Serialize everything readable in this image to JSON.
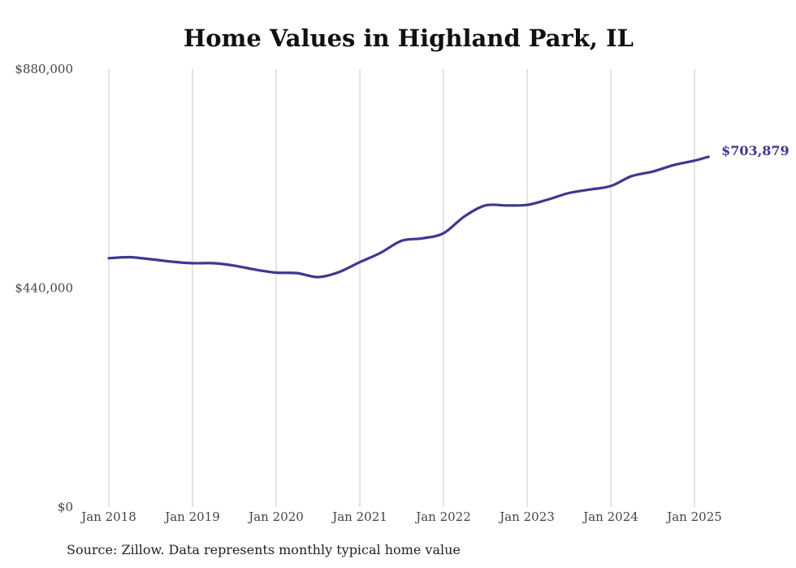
{
  "title": "Home Values in Highland Park, IL",
  "source": "Source: Zillow. Data represents monthly typical home value",
  "colors": {
    "line": "#3d3890",
    "grid": "#c8c8c8",
    "text": "#444444"
  },
  "chart_data": {
    "type": "line",
    "title": "Home Values in Highland Park, IL",
    "xlabel": "",
    "ylabel": "",
    "ylim": [
      0,
      880000
    ],
    "yticks": [
      "$0",
      "$440,000",
      "$880,000"
    ],
    "ytick_values": [
      0,
      440000,
      880000
    ],
    "xticks": [
      "Jan 2018",
      "Jan 2019",
      "Jan 2020",
      "Jan 2021",
      "Jan 2022",
      "Jan 2023",
      "Jan 2024",
      "Jan 2025"
    ],
    "xtick_values": [
      "2018-01",
      "2019-01",
      "2020-01",
      "2021-01",
      "2022-01",
      "2023-01",
      "2024-01",
      "2025-01"
    ],
    "x_range": [
      "2018-01",
      "2025-03"
    ],
    "grid": "vertical",
    "end_label": "$703,879",
    "series": [
      {
        "points": [
          [
            "2018-01",
            500000
          ],
          [
            "2018-04",
            502000
          ],
          [
            "2018-07",
            498000
          ],
          [
            "2018-10",
            493000
          ],
          [
            "2019-01",
            490000
          ],
          [
            "2019-04",
            490000
          ],
          [
            "2019-07",
            485000
          ],
          [
            "2019-10",
            477000
          ],
          [
            "2020-01",
            471000
          ],
          [
            "2020-04",
            470000
          ],
          [
            "2020-07",
            462000
          ],
          [
            "2020-10",
            472000
          ],
          [
            "2021-01",
            492000
          ],
          [
            "2021-04",
            511000
          ],
          [
            "2021-07",
            535000
          ],
          [
            "2021-10",
            540000
          ],
          [
            "2022-01",
            550000
          ],
          [
            "2022-04",
            584000
          ],
          [
            "2022-07",
            606000
          ],
          [
            "2022-10",
            606000
          ],
          [
            "2023-01",
            607000
          ],
          [
            "2023-04",
            618000
          ],
          [
            "2023-07",
            631000
          ],
          [
            "2023-10",
            638000
          ],
          [
            "2024-01",
            645000
          ],
          [
            "2024-04",
            665000
          ],
          [
            "2024-07",
            674000
          ],
          [
            "2024-10",
            687000
          ],
          [
            "2025-01",
            696000
          ],
          [
            "2025-03",
            703879
          ]
        ]
      }
    ]
  }
}
